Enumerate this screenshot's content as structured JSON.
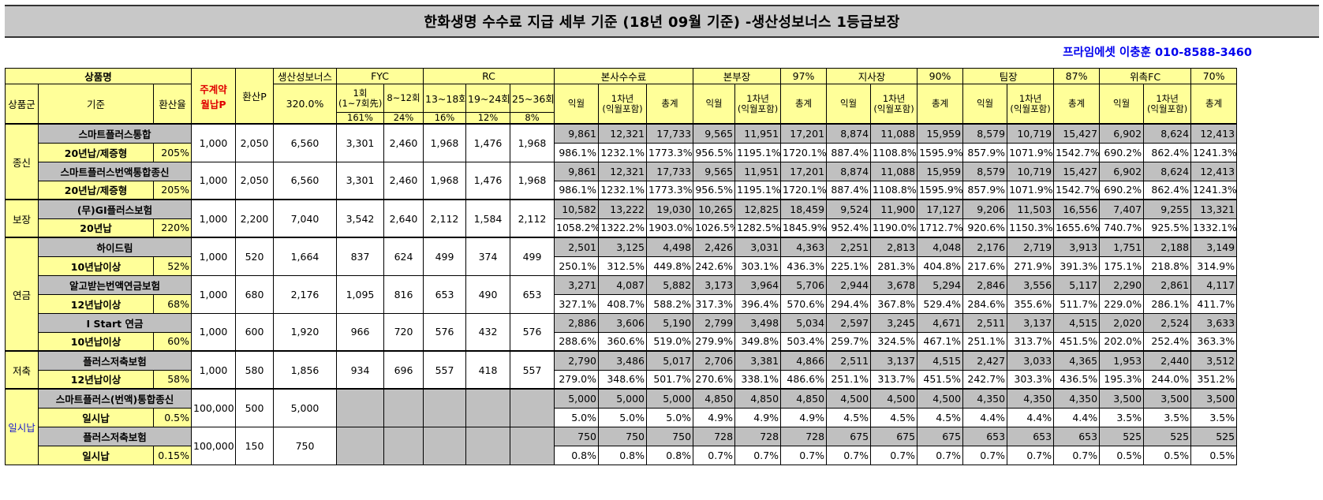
{
  "title": "한화생명 수수료 지급 세부 기준 (18년 09월 기준) -생산성보너스 1등급보장",
  "contact": "프라임에셋 이충훈 010-8588-3460",
  "header": {
    "product": "상품명",
    "group": "상품군",
    "criteria": "기준",
    "conv_rate": "환산율",
    "main_contract": "주계약\n월납P",
    "conv_p": "환산P",
    "bonus": "생산성보너스",
    "bonus_rate": "320.0%",
    "fyc": "FYC",
    "rc": "RC",
    "fyc_cols": [
      "1회\n(1~7회先)",
      "8~12회"
    ],
    "fyc_rates": [
      "161%",
      "24%"
    ],
    "rc_cols": [
      "13~18회",
      "19~24회",
      "25~36회"
    ],
    "rc_rates": [
      "16%",
      "12%",
      "8%"
    ],
    "sub_cols": [
      "익월",
      "1차년\n(익월포함)",
      "총계"
    ],
    "levels": [
      {
        "name": "본사수수료",
        "rate": ""
      },
      {
        "name": "본부장",
        "rate": "97%"
      },
      {
        "name": "지사장",
        "rate": "90%"
      },
      {
        "name": "팀장",
        "rate": "87%"
      },
      {
        "name": "위촉FC",
        "rate": "70%"
      }
    ]
  },
  "groups": [
    {
      "name": "종신",
      "products": [
        {
          "name": "스마트플러스통합",
          "criteria": "20년납/제증형",
          "conv": "205%",
          "monthly": "1,000",
          "conv_p": "2,050",
          "bonus": "6,560",
          "fyc": [
            "3,301",
            "2,460"
          ],
          "rc": [
            "1,968",
            "1,476",
            "1,968"
          ],
          "amounts": [
            "9,861",
            "12,321",
            "17,733",
            "9,565",
            "11,951",
            "17,201",
            "8,874",
            "11,088",
            "15,959",
            "8,579",
            "10,719",
            "15,427",
            "6,902",
            "8,624",
            "12,413"
          ],
          "pcts": [
            "986.1%",
            "1232.1%",
            "1773.3%",
            "956.5%",
            "1195.1%",
            "1720.1%",
            "887.4%",
            "1108.8%",
            "1595.9%",
            "857.9%",
            "1071.9%",
            "1542.7%",
            "690.2%",
            "862.4%",
            "1241.3%"
          ]
        },
        {
          "name": "스마트플러스번액통합종신",
          "criteria": "20년납/제증형",
          "conv": "205%",
          "monthly": "1,000",
          "conv_p": "2,050",
          "bonus": "6,560",
          "fyc": [
            "3,301",
            "2,460"
          ],
          "rc": [
            "1,968",
            "1,476",
            "1,968"
          ],
          "amounts": [
            "9,861",
            "12,321",
            "17,733",
            "9,565",
            "11,951",
            "17,201",
            "8,874",
            "11,088",
            "15,959",
            "8,579",
            "10,719",
            "15,427",
            "6,902",
            "8,624",
            "12,413"
          ],
          "pcts": [
            "986.1%",
            "1232.1%",
            "1773.3%",
            "956.5%",
            "1195.1%",
            "1720.1%",
            "887.4%",
            "1108.8%",
            "1595.9%",
            "857.9%",
            "1071.9%",
            "1542.7%",
            "690.2%",
            "862.4%",
            "1241.3%"
          ]
        }
      ]
    },
    {
      "name": "보장",
      "products": [
        {
          "name": "(무)GI플러스보험",
          "criteria": "20년납",
          "conv": "220%",
          "monthly": "1,000",
          "conv_p": "2,200",
          "bonus": "7,040",
          "fyc": [
            "3,542",
            "2,640"
          ],
          "rc": [
            "2,112",
            "1,584",
            "2,112"
          ],
          "amounts": [
            "10,582",
            "13,222",
            "19,030",
            "10,265",
            "12,825",
            "18,459",
            "9,524",
            "11,900",
            "17,127",
            "9,206",
            "11,503",
            "16,556",
            "7,407",
            "9,255",
            "13,321"
          ],
          "pcts": [
            "1058.2%",
            "1322.2%",
            "1903.0%",
            "1026.5%",
            "1282.5%",
            "1845.9%",
            "952.4%",
            "1190.0%",
            "1712.7%",
            "920.6%",
            "1150.3%",
            "1655.6%",
            "740.7%",
            "925.5%",
            "1332.1%"
          ]
        }
      ]
    },
    {
      "name": "연금",
      "products": [
        {
          "name": "하이드림",
          "criteria": "10년납이상",
          "conv": "52%",
          "monthly": "1,000",
          "conv_p": "520",
          "bonus": "1,664",
          "fyc": [
            "837",
            "624"
          ],
          "rc": [
            "499",
            "374",
            "499"
          ],
          "amounts": [
            "2,501",
            "3,125",
            "4,498",
            "2,426",
            "3,031",
            "4,363",
            "2,251",
            "2,813",
            "4,048",
            "2,176",
            "2,719",
            "3,913",
            "1,751",
            "2,188",
            "3,149"
          ],
          "pcts": [
            "250.1%",
            "312.5%",
            "449.8%",
            "242.6%",
            "303.1%",
            "436.3%",
            "225.1%",
            "281.3%",
            "404.8%",
            "217.6%",
            "271.9%",
            "391.3%",
            "175.1%",
            "218.8%",
            "314.9%"
          ]
        },
        {
          "name": "알고받는번액연금보험",
          "criteria": "12년납이상",
          "conv": "68%",
          "monthly": "1,000",
          "conv_p": "680",
          "bonus": "2,176",
          "fyc": [
            "1,095",
            "816"
          ],
          "rc": [
            "653",
            "490",
            "653"
          ],
          "amounts": [
            "3,271",
            "4,087",
            "5,882",
            "3,173",
            "3,964",
            "5,706",
            "2,944",
            "3,678",
            "5,294",
            "2,846",
            "3,556",
            "5,117",
            "2,290",
            "2,861",
            "4,117"
          ],
          "pcts": [
            "327.1%",
            "408.7%",
            "588.2%",
            "317.3%",
            "396.4%",
            "570.6%",
            "294.4%",
            "367.8%",
            "529.4%",
            "284.6%",
            "355.6%",
            "511.7%",
            "229.0%",
            "286.1%",
            "411.7%"
          ]
        },
        {
          "name": "I Start 연금",
          "criteria": "10년납이상",
          "conv": "60%",
          "monthly": "1,000",
          "conv_p": "600",
          "bonus": "1,920",
          "fyc": [
            "966",
            "720"
          ],
          "rc": [
            "576",
            "432",
            "576"
          ],
          "amounts": [
            "2,886",
            "3,606",
            "5,190",
            "2,799",
            "3,498",
            "5,034",
            "2,597",
            "3,245",
            "4,671",
            "2,511",
            "3,137",
            "4,515",
            "2,020",
            "2,524",
            "3,633"
          ],
          "pcts": [
            "288.6%",
            "360.6%",
            "519.0%",
            "279.9%",
            "349.8%",
            "503.4%",
            "259.7%",
            "324.5%",
            "467.1%",
            "251.1%",
            "313.7%",
            "451.5%",
            "202.0%",
            "252.4%",
            "363.3%"
          ]
        }
      ]
    },
    {
      "name": "저축",
      "products": [
        {
          "name": "플러스저축보험",
          "criteria": "12년납이상",
          "conv": "58%",
          "monthly": "1,000",
          "conv_p": "580",
          "bonus": "1,856",
          "fyc": [
            "934",
            "696"
          ],
          "rc": [
            "557",
            "418",
            "557"
          ],
          "amounts": [
            "2,790",
            "3,486",
            "5,017",
            "2,706",
            "3,381",
            "4,866",
            "2,511",
            "3,137",
            "4,515",
            "2,427",
            "3,033",
            "4,365",
            "1,953",
            "2,440",
            "3,512"
          ],
          "pcts": [
            "279.0%",
            "348.6%",
            "501.7%",
            "270.6%",
            "338.1%",
            "486.6%",
            "251.1%",
            "313.7%",
            "451.5%",
            "242.7%",
            "303.3%",
            "436.5%",
            "195.3%",
            "244.0%",
            "351.2%"
          ]
        }
      ]
    },
    {
      "name": "일시납",
      "products": [
        {
          "name": "스마트플러스(번액)통합종신",
          "criteria": "일시납",
          "conv": "0.5%",
          "monthly": "100,000",
          "conv_p": "500",
          "bonus": "5,000",
          "fyc": [
            "",
            ""
          ],
          "rc": [
            "",
            "",
            ""
          ],
          "amounts": [
            "5,000",
            "5,000",
            "5,000",
            "4,850",
            "4,850",
            "4,850",
            "4,500",
            "4,500",
            "4,500",
            "4,350",
            "4,350",
            "4,350",
            "3,500",
            "3,500",
            "3,500"
          ],
          "pcts": [
            "5.0%",
            "5.0%",
            "5.0%",
            "4.9%",
            "4.9%",
            "4.9%",
            "4.5%",
            "4.5%",
            "4.5%",
            "4.4%",
            "4.4%",
            "4.4%",
            "3.5%",
            "3.5%",
            "3.5%"
          ]
        },
        {
          "name": "플러스저축보험",
          "criteria": "일시납",
          "conv": "0.15%",
          "monthly": "100,000",
          "conv_p": "150",
          "bonus": "750",
          "fyc": [
            "",
            ""
          ],
          "rc": [
            "",
            "",
            ""
          ],
          "amounts": [
            "750",
            "750",
            "750",
            "728",
            "728",
            "728",
            "675",
            "675",
            "675",
            "653",
            "653",
            "653",
            "525",
            "525",
            "525"
          ],
          "pcts": [
            "0.8%",
            "0.8%",
            "0.8%",
            "0.7%",
            "0.7%",
            "0.7%",
            "0.7%",
            "0.7%",
            "0.7%",
            "0.7%",
            "0.7%",
            "0.7%",
            "0.5%",
            "0.5%",
            "0.5%"
          ]
        }
      ]
    }
  ]
}
